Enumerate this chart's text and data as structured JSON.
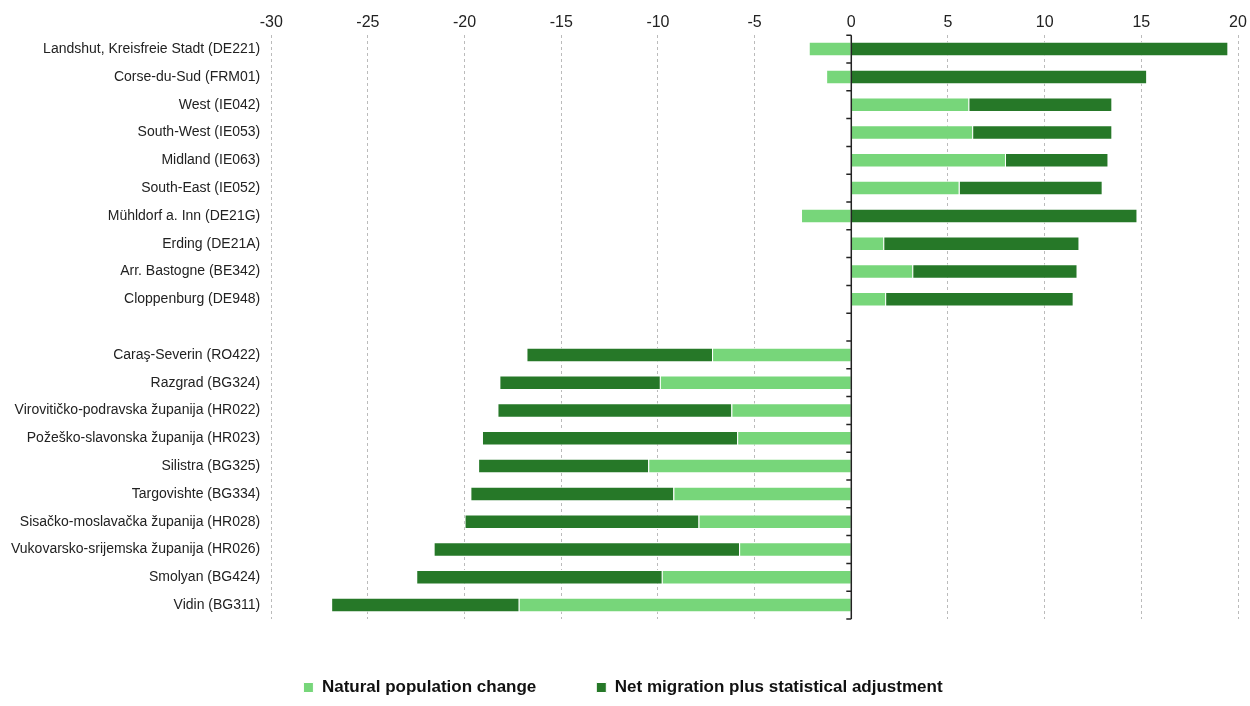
{
  "chart_data": {
    "type": "bar",
    "orientation": "horizontal",
    "stacked": true,
    "categories": [
      "Landshut, Kreisfreie Stadt (DE221)",
      "Corse-du-Sud (FRM01)",
      "West (IE042)",
      "South-West (IE053)",
      "Midland (IE063)",
      "South-East (IE052)",
      "Mühldorf a. Inn (DE21G)",
      "Erding (DE21A)",
      "Arr. Bastogne (BE342)",
      "Cloppenburg (DE948)",
      null,
      "Caraş-Severin (RO422)",
      "Razgrad (BG324)",
      "Virovitičko-podravska županija (HR022)",
      "Požeško-slavonska županija (HR023)",
      "Silistra (BG325)",
      "Targovishte (BG334)",
      "Sisačko-moslavačka županija (HR028)",
      "Vukovarsko-srijemska županija (HR026)",
      "Smolyan (BG424)",
      "Vidin (BG311)"
    ],
    "series": [
      {
        "name": "Natural population change",
        "color": "#77d67a",
        "values": [
          -2.2,
          -1.3,
          6.1,
          6.3,
          8.0,
          5.6,
          -2.6,
          1.7,
          3.2,
          1.8,
          null,
          -7.2,
          -9.9,
          -6.2,
          -5.9,
          -10.5,
          -9.2,
          -7.9,
          -5.8,
          -9.8,
          -17.2
        ]
      },
      {
        "name": "Net migration plus statistical adjustment",
        "color": "#267828",
        "values": [
          19.5,
          15.3,
          7.4,
          7.2,
          5.3,
          7.4,
          14.8,
          10.1,
          8.5,
          9.7,
          null,
          -9.6,
          -8.3,
          -12.1,
          -13.2,
          -8.8,
          -10.5,
          -12.1,
          -15.8,
          -12.7,
          -9.7
        ]
      }
    ],
    "xlim": [
      -30,
      20
    ],
    "xticks": [
      -30,
      -25,
      -20,
      -15,
      -10,
      -5,
      0,
      5,
      10,
      15,
      20
    ],
    "grid": "x",
    "legend": "bottom"
  }
}
